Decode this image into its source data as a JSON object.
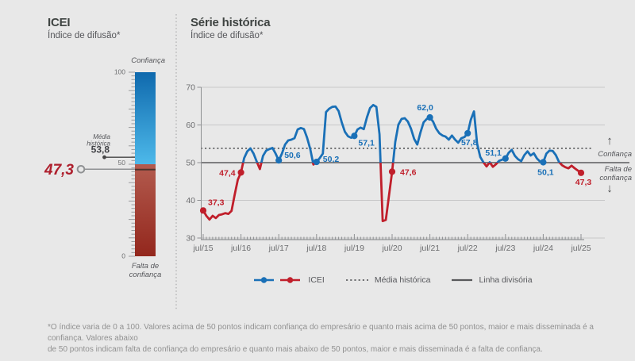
{
  "app": {
    "background": "#e8e8e8"
  },
  "left_panel": {
    "title": "ICEI",
    "subtitle": "Índice de difusão*",
    "gauge": {
      "top_label": "Confiança",
      "bottom_label_line1": "Falta de",
      "bottom_label_line2": "confiança",
      "scale": {
        "max": "100",
        "mid": "50",
        "min": "0"
      },
      "current": {
        "label": "47,3",
        "value": 47.3,
        "color": "#ae1f2d"
      },
      "historical_mean": {
        "label_line1": "Média",
        "label_line2": "histórica",
        "value_label": "53,8",
        "value": 53.8
      },
      "colors": {
        "blue_top": "#0f69ad",
        "blue_bottom": "#4db9ea",
        "red_top": "#b35b4e",
        "red_bottom": "#93271d"
      }
    }
  },
  "right_panel": {
    "title": "Série histórica",
    "subtitle": "Índice de difusão*",
    "side_labels": {
      "up_arrow": "↑",
      "above": "Confiança",
      "below_line1": "Falta de",
      "below_line2": "confiança",
      "down_arrow": "↓"
    },
    "legend": {
      "icei": "ICEI",
      "mean": "Média histórica",
      "divider": "Linha divisória"
    }
  },
  "chart_data": {
    "type": "line",
    "title": "Série histórica",
    "x_unit": "month",
    "x_tick_labels": [
      "jul/15",
      "jul/16",
      "jul/17",
      "jul/18",
      "jul/19",
      "jul/20",
      "jul/21",
      "jul/22",
      "jul/23",
      "jul/24",
      "jul/25"
    ],
    "ylim": [
      30,
      70
    ],
    "yticks": [
      30,
      40,
      50,
      60,
      70
    ],
    "divider_value": 50,
    "historical_mean": 53.8,
    "grid": true,
    "legend_position": "bottom",
    "series": [
      {
        "name": "ICEI",
        "color_above_50": "#1a70b7",
        "color_below_50": "#c01f2b",
        "values": [
          37.3,
          35.9,
          34.9,
          35.9,
          35.3,
          36.1,
          36.3,
          36.6,
          36.4,
          37.2,
          41.5,
          45.5,
          47.4,
          51.2,
          53.0,
          53.8,
          52.4,
          50.3,
          48.3,
          51.8,
          53.2,
          53.6,
          53.9,
          52.4,
          50.6,
          52.4,
          54.8,
          55.9,
          56.1,
          56.5,
          58.8,
          59.2,
          58.9,
          56.6,
          53.6,
          49.5,
          50.2,
          51.2,
          52.4,
          63.4,
          64.3,
          64.8,
          64.9,
          63.7,
          60.7,
          58.2,
          57.0,
          56.6,
          57.1,
          58.8,
          59.3,
          58.9,
          62.0,
          64.5,
          65.3,
          64.8,
          57.5,
          34.5,
          34.8,
          41.2,
          47.6,
          55.5,
          60.1,
          61.6,
          61.8,
          60.9,
          59.0,
          56.3,
          54.8,
          58.0,
          60.7,
          61.6,
          62.0,
          60.9,
          59.0,
          57.8,
          57.2,
          56.9,
          56.1,
          57.2,
          56.1,
          55.3,
          56.5,
          56.8,
          57.8,
          61.4,
          63.6,
          55.0,
          51.5,
          50.1,
          49.0,
          50.1,
          48.9,
          49.6,
          50.5,
          50.8,
          51.1,
          52.6,
          53.4,
          51.8,
          50.9,
          50.4,
          52.0,
          53.0,
          51.9,
          52.5,
          51.1,
          50.3,
          50.1,
          52.4,
          53.2,
          53.1,
          52.0,
          50.2,
          49.3,
          48.8,
          48.5,
          49.2,
          48.5,
          47.9,
          47.3
        ]
      }
    ],
    "labeled_points": [
      {
        "index": 0,
        "label": "37,3"
      },
      {
        "index": 12,
        "label": "47,4"
      },
      {
        "index": 24,
        "label": "50,6"
      },
      {
        "index": 36,
        "label": "50,2"
      },
      {
        "index": 48,
        "label": "57,1"
      },
      {
        "index": 60,
        "label": "47,6"
      },
      {
        "index": 72,
        "label": "62,0"
      },
      {
        "index": 84,
        "label": "57,8"
      },
      {
        "index": 96,
        "label": "51,1"
      },
      {
        "index": 108,
        "label": "50,1"
      },
      {
        "index": 120,
        "label": "47,3"
      }
    ]
  },
  "footnote": {
    "line1": "*O índice varia de 0 a 100. Valores acima de 50 pontos indicam confiança do empresário e quanto mais acima de 50 pontos, maior e mais disseminada é a confiança. Valores abaixo",
    "line2": "de 50 pontos indicam falta de confiança do empresário e quanto mais abaixo de 50 pontos, maior e mais disseminada é a falta de confiança."
  }
}
